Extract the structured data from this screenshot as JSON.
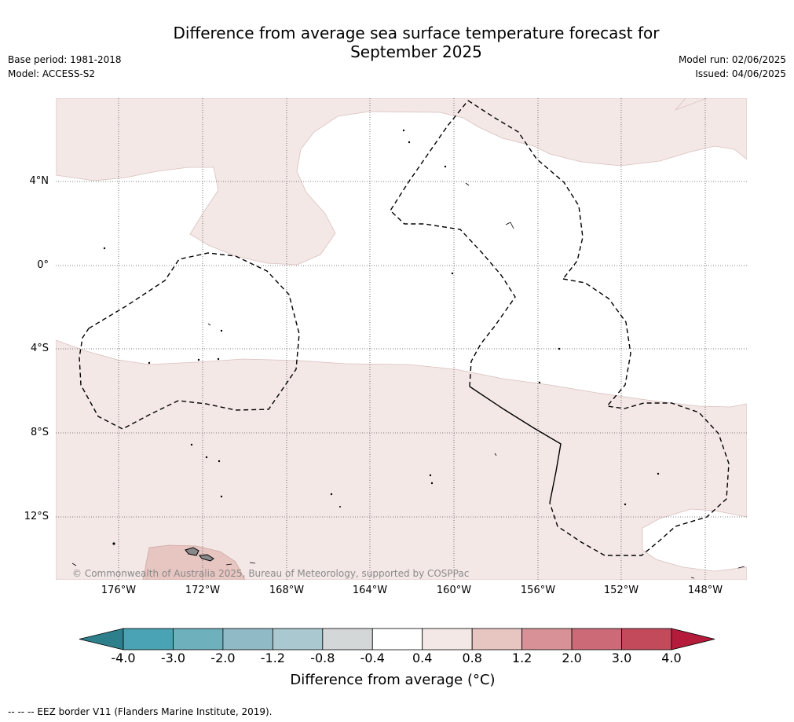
{
  "title_line1": "Difference from average sea surface temperature forecast for",
  "title_line2": "September 2025",
  "base_period": "Base period: 1981-2018",
  "model": "Model: ACCESS-S2",
  "model_run": "Model run: 02/06/2025",
  "issued": "Issued: 04/06/2025",
  "copyright": "© Commonwealth of Australia 2025, Bureau of Meteorology, supported by COSPPac",
  "lat_labels": [
    "4°N",
    "0°",
    "4°S",
    "8°S",
    "12°S"
  ],
  "lon_labels": [
    "176°W",
    "172°W",
    "168°W",
    "164°W",
    "160°W",
    "156°W",
    "152°W",
    "148°W"
  ],
  "colorbar": {
    "ticks": [
      "-4.0",
      "-3.0",
      "-2.0",
      "-1.2",
      "-0.8",
      "-0.4",
      "0.4",
      "0.8",
      "1.2",
      "2.0",
      "3.0",
      "4.0"
    ],
    "colors": [
      "#2e7f8c",
      "#4aa3b4",
      "#6fb0bd",
      "#8fbac6",
      "#aac8cf",
      "#d4d7d8",
      "#ffffff",
      "#f4e8e7",
      "#e7c5c1",
      "#d89197",
      "#cc6b77",
      "#c24a5a",
      "#b51c3c"
    ],
    "label": "Difference from average (°C)"
  },
  "colors": {
    "warm_light": "#f4e8e7",
    "warm_medium": "#e7c5c1",
    "land": "#888888"
  },
  "footnote": "--  --  -- EEZ border V11 (Flanders Marine Institute, 2019)."
}
